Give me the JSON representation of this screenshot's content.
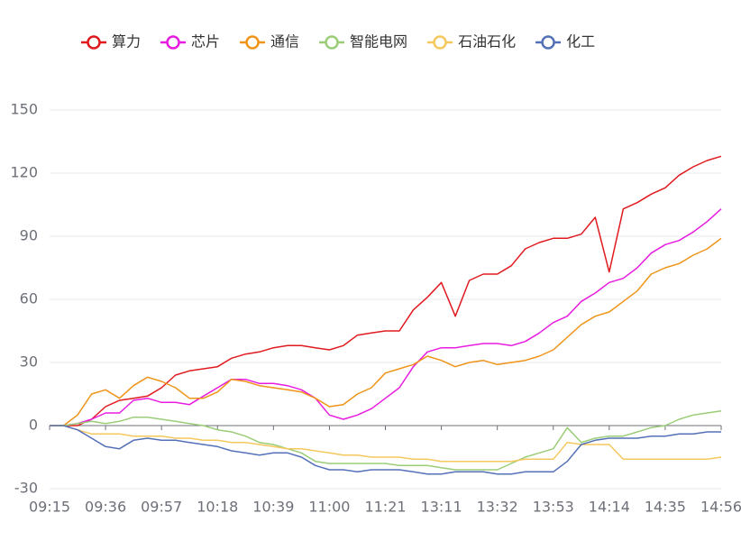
{
  "chart_data": {
    "type": "line",
    "categories": [
      "09:15",
      null,
      null,
      null,
      "09:36",
      null,
      null,
      null,
      "09:57",
      null,
      null,
      null,
      "10:18",
      null,
      null,
      null,
      "10:39",
      null,
      null,
      null,
      "11:00",
      null,
      null,
      null,
      "11:21",
      null,
      null,
      null,
      "13:11",
      null,
      null,
      null,
      "13:32",
      null,
      null,
      null,
      "13:53",
      null,
      null,
      null,
      "14:14",
      null,
      null,
      null,
      "14:35",
      null,
      null,
      null,
      "14:56"
    ],
    "ylim": [
      -30,
      150
    ],
    "yticks": [
      -30,
      0,
      30,
      60,
      90,
      120,
      150
    ],
    "grid": true,
    "legend": "top",
    "series": [
      {
        "name": "算力",
        "color": "#e01a1f",
        "values": [
          0,
          0,
          0,
          3,
          9,
          12,
          13,
          14,
          18,
          24,
          26,
          27,
          28,
          32,
          34,
          35,
          37,
          38,
          38,
          37,
          36,
          38,
          43,
          44,
          45,
          45,
          55,
          61,
          68,
          52,
          69,
          72,
          72,
          76,
          84,
          87,
          89,
          89,
          91,
          99,
          73,
          103,
          106,
          110,
          113,
          119,
          123,
          126,
          128
        ]
      },
      {
        "name": "芯片",
        "color": "#e81ce0",
        "values": [
          0,
          0,
          1,
          3,
          6,
          6,
          12,
          13,
          11,
          11,
          10,
          14,
          18,
          22,
          22,
          20,
          20,
          19,
          17,
          13,
          5,
          3,
          5,
          8,
          13,
          18,
          28,
          35,
          37,
          37,
          38,
          39,
          39,
          38,
          40,
          44,
          49,
          52,
          59,
          63,
          68,
          70,
          75,
          82,
          86,
          88,
          92,
          97,
          103
        ]
      },
      {
        "name": "通信",
        "color": "#ee9418",
        "values": [
          0,
          0,
          5,
          15,
          17,
          13,
          19,
          23,
          21,
          18,
          13,
          13,
          16,
          22,
          21,
          19,
          18,
          17,
          16,
          13,
          9,
          10,
          15,
          18,
          25,
          27,
          29,
          33,
          31,
          28,
          30,
          31,
          29,
          30,
          31,
          33,
          36,
          42,
          48,
          52,
          54,
          59,
          64,
          72,
          75,
          77,
          81,
          84,
          89
        ]
      },
      {
        "name": "智能电网",
        "color": "#9bcd78",
        "values": [
          0,
          0,
          1,
          2,
          1,
          2,
          4,
          4,
          3,
          2,
          1,
          0,
          -2,
          -3,
          -5,
          -8,
          -9,
          -11,
          -13,
          -17,
          -18,
          -18,
          -18,
          -18,
          -18,
          -19,
          -19,
          -19,
          -20,
          -21,
          -21,
          -21,
          -21,
          -18,
          -15,
          -13,
          -11,
          -1,
          -8,
          -6,
          -5,
          -5,
          -3,
          -1,
          0,
          3,
          5,
          6,
          7
        ]
      },
      {
        "name": "石油石化",
        "color": "#f5c85e",
        "values": [
          0,
          0,
          -2,
          -4,
          -4,
          -4,
          -5,
          -5,
          -5,
          -6,
          -6,
          -7,
          -7,
          -8,
          -8,
          -9,
          -10,
          -11,
          -11,
          -12,
          -13,
          -14,
          -14,
          -15,
          -15,
          -15,
          -16,
          -16,
          -17,
          -17,
          -17,
          -17,
          -17,
          -17,
          -16,
          -16,
          -16,
          -8,
          -9,
          -9,
          -9,
          -16,
          -16,
          -16,
          -16,
          -16,
          -16,
          -16,
          -15
        ]
      },
      {
        "name": "化工",
        "color": "#5470b8",
        "values": [
          0,
          0,
          -2,
          -6,
          -10,
          -11,
          -7,
          -6,
          -7,
          -7,
          -8,
          -9,
          -10,
          -12,
          -13,
          -14,
          -13,
          -13,
          -15,
          -19,
          -21,
          -21,
          -22,
          -21,
          -21,
          -21,
          -22,
          -23,
          -23,
          -22,
          -22,
          -22,
          -23,
          -23,
          -22,
          -22,
          -22,
          -17,
          -9,
          -7,
          -6,
          -6,
          -6,
          -5,
          -5,
          -4,
          -4,
          -3,
          -3
        ]
      }
    ]
  }
}
